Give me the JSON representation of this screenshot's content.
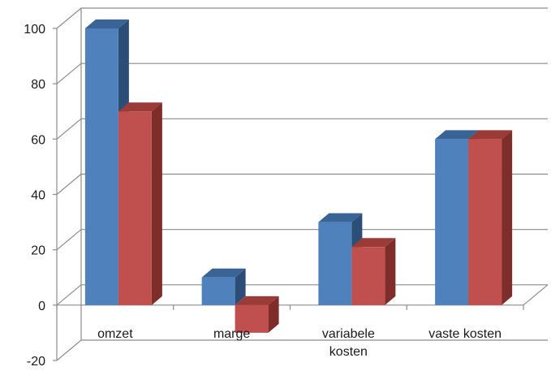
{
  "chart_data": {
    "type": "bar",
    "style": "3d-clustered-column",
    "categories": [
      "omzet",
      "marge",
      "variabele kosten",
      "vaste kosten"
    ],
    "category_label_lines": [
      [
        "omzet"
      ],
      [
        "marge"
      ],
      [
        "variabele",
        "kosten"
      ],
      [
        "vaste kosten"
      ]
    ],
    "series": [
      {
        "values": [
          100,
          10,
          30,
          60
        ],
        "color": "#4F81BD",
        "side_color": "#2C4D75",
        "top_color": "#3A6496"
      },
      {
        "values": [
          70,
          -10,
          21,
          60
        ],
        "color": "#C0504D",
        "side_color": "#7F2D2A",
        "top_color": "#9B3B38"
      }
    ],
    "yticks": [
      -20,
      0,
      20,
      40,
      60,
      80,
      100
    ],
    "ylim": [
      -20,
      100
    ],
    "title": "",
    "xlabel": "",
    "ylabel": "",
    "grid": true,
    "legend": "none"
  }
}
